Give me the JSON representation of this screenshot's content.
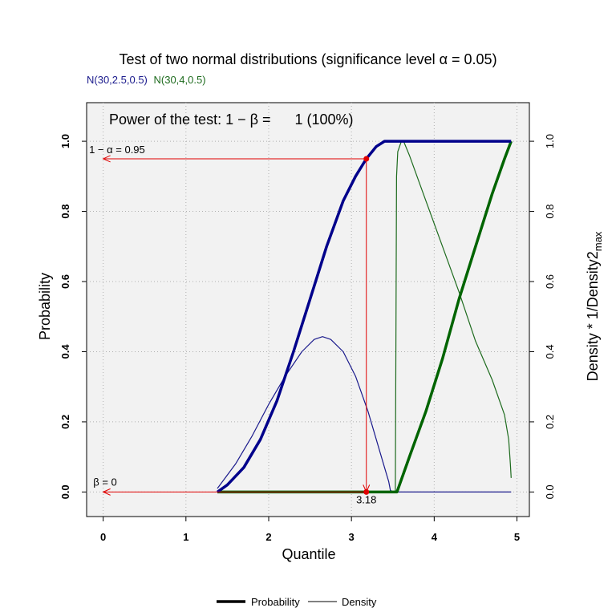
{
  "chart_data": {
    "type": "line",
    "title": "Test of two normal distributions (significance level α = 0.05)",
    "subtitle_series": [
      {
        "name": "N(30,2.5,0.5)",
        "color": "#1a1a8c"
      },
      {
        "name": "N(30,4,0.5)",
        "color": "#1e6b1e"
      }
    ],
    "annotation_power": "Power of the test: 1 − β =      1 (100%)",
    "xlabel": "Quantile",
    "ylabel": "Probability",
    "y2label": "Density * 1/Density2",
    "y2label_sub": "max",
    "xlim": [
      -0.2,
      5.15
    ],
    "ylim": [
      -0.07,
      1.11
    ],
    "x_ticks": [
      0,
      1,
      2,
      3,
      4,
      5
    ],
    "y_ticks": [
      0.0,
      0.2,
      0.4,
      0.6,
      0.8,
      1.0
    ],
    "x_tick_labels": [
      "0",
      "1",
      "2",
      "3",
      "4",
      "5"
    ],
    "y_tick_labels": [
      "0.0",
      "0.2",
      "0.4",
      "0.6",
      "0.8",
      "1.0"
    ],
    "y2_tick_labels": [
      "0.0",
      "0.2",
      "0.4",
      "0.6",
      "0.8",
      "1.0"
    ],
    "grid": true,
    "alpha_label": "1 − α = 0.95",
    "beta_label": "β =  0",
    "critical_value": 3.18,
    "critical_label": "3.18",
    "alpha_prob": 0.95,
    "beta_prob": 0.0,
    "series": [
      {
        "name": "Probability N(30,2.5,0.5)",
        "kind": "probability",
        "color": "#00008b",
        "x": [
          1.38,
          1.5,
          1.7,
          1.9,
          2.1,
          2.3,
          2.5,
          2.7,
          2.9,
          3.05,
          3.18,
          3.3,
          3.4,
          3.47,
          3.6,
          4.0,
          4.5,
          4.93
        ],
        "y": [
          0.0,
          0.02,
          0.07,
          0.15,
          0.26,
          0.4,
          0.55,
          0.7,
          0.83,
          0.9,
          0.95,
          0.985,
          1.0,
          1.0,
          1.0,
          1.0,
          1.0,
          1.0
        ]
      },
      {
        "name": "Density N(30,2.5,0.5)",
        "kind": "density",
        "color": "#1a1a8c",
        "x": [
          1.38,
          1.6,
          1.8,
          2.0,
          2.2,
          2.4,
          2.55,
          2.65,
          2.75,
          2.9,
          3.05,
          3.2,
          3.3,
          3.4,
          3.45,
          3.47,
          3.5,
          3.52,
          3.6,
          4.0,
          4.5,
          4.93
        ],
        "y": [
          0.01,
          0.08,
          0.16,
          0.25,
          0.33,
          0.4,
          0.435,
          0.443,
          0.435,
          0.4,
          0.33,
          0.23,
          0.15,
          0.07,
          0.03,
          0.005,
          0.0,
          0.0,
          0.0,
          0.0,
          0.0,
          0.0
        ]
      },
      {
        "name": "Probability N(30,4,0.5)",
        "kind": "probability",
        "color": "#006400",
        "x": [
          1.38,
          2.0,
          3.0,
          3.55,
          3.7,
          3.9,
          4.1,
          4.3,
          4.5,
          4.7,
          4.85,
          4.93
        ],
        "y": [
          0.0,
          0.0,
          0.0,
          0.0,
          0.1,
          0.23,
          0.38,
          0.55,
          0.7,
          0.85,
          0.95,
          1.0
        ]
      },
      {
        "name": "Density N(30,4,0.5)",
        "kind": "density",
        "color": "#1e6b1e",
        "x": [
          1.38,
          2.0,
          3.0,
          3.53,
          3.545,
          3.56,
          3.6,
          3.63,
          3.7,
          3.9,
          4.1,
          4.3,
          4.5,
          4.7,
          4.85,
          4.9,
          4.92,
          4.93
        ],
        "y": [
          0.0,
          0.0,
          0.0,
          0.0,
          0.9,
          0.97,
          0.998,
          1.0,
          0.96,
          0.83,
          0.7,
          0.57,
          0.43,
          0.32,
          0.22,
          0.15,
          0.08,
          0.04
        ]
      }
    ],
    "legend": [
      {
        "label": "Probability",
        "kind": "probability"
      },
      {
        "label": "Density",
        "kind": "density"
      }
    ],
    "legend_position": "bottom"
  }
}
